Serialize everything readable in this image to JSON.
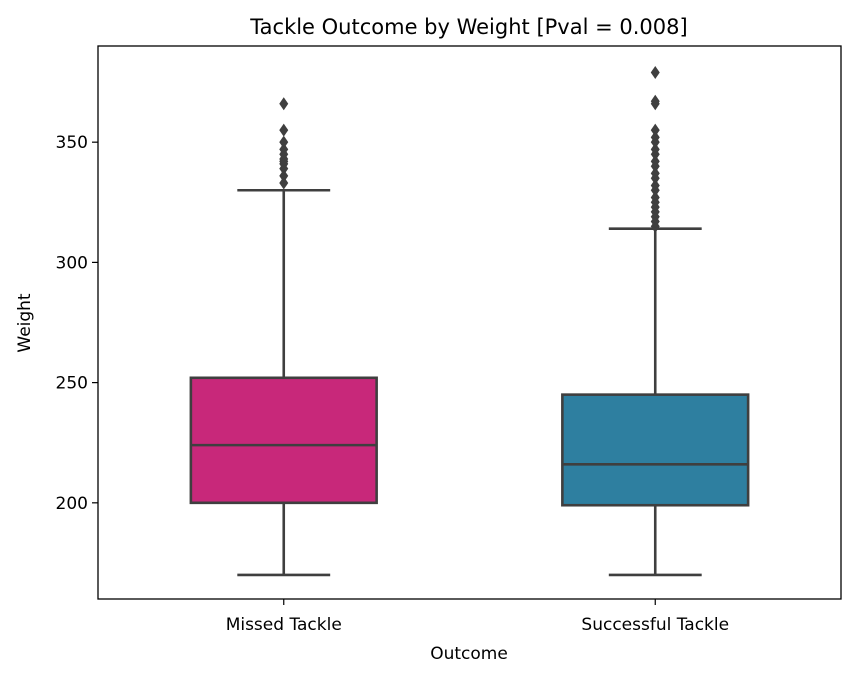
{
  "chart_data": {
    "type": "box",
    "title": "Tackle Outcome by Weight [Pval = 0.008]",
    "xlabel": "Outcome",
    "ylabel": "Weight",
    "ylim": [
      160,
      390
    ],
    "yticks": [
      200,
      250,
      300,
      350
    ],
    "categories": [
      "Missed Tackle",
      "Successful Tackle"
    ],
    "series": [
      {
        "category": "Missed Tackle",
        "color": "#c8287a",
        "whisker_low": 170,
        "q1": 200,
        "median": 224,
        "q3": 252,
        "whisker_high": 330,
        "outliers": [
          333,
          336,
          339,
          341,
          342,
          343,
          345,
          347,
          350,
          355,
          366
        ]
      },
      {
        "category": "Successful Tackle",
        "color": "#2e7fa0",
        "whisker_low": 170,
        "q1": 199,
        "median": 216,
        "q3": 245,
        "whisker_high": 314,
        "outliers": [
          315,
          317,
          319,
          321,
          323,
          325,
          327,
          330,
          332,
          335,
          337,
          340,
          342,
          345,
          347,
          350,
          352,
          355,
          366,
          367,
          379
        ]
      }
    ],
    "grid": false,
    "legend": "none",
    "line_color": "#3f3f3f"
  }
}
